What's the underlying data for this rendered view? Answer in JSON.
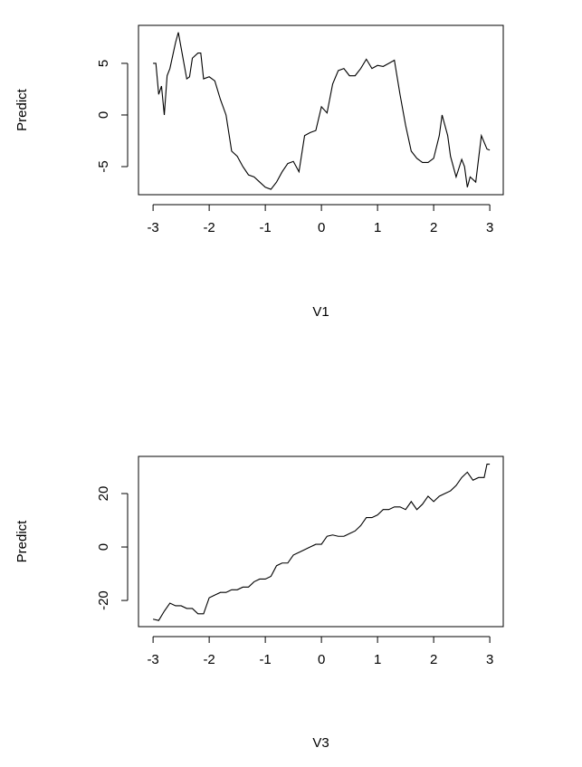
{
  "chart_data": [
    {
      "type": "line",
      "xlabel": "V1",
      "ylabel": "Predict",
      "color": "#000000",
      "x": [
        -3,
        -2.95,
        -2.9,
        -2.85,
        -2.8,
        -2.75,
        -2.7,
        -2.6,
        -2.55,
        -2.5,
        -2.4,
        -2.35,
        -2.3,
        -2.2,
        -2.15,
        -2.1,
        -2.0,
        -1.9,
        -1.8,
        -1.7,
        -1.6,
        -1.5,
        -1.4,
        -1.3,
        -1.2,
        -1.1,
        -1.0,
        -0.9,
        -0.8,
        -0.7,
        -0.6,
        -0.5,
        -0.4,
        -0.3,
        -0.2,
        -0.1,
        0,
        0.1,
        0.2,
        0.3,
        0.4,
        0.5,
        0.6,
        0.7,
        0.8,
        0.9,
        1.0,
        1.1,
        1.2,
        1.3,
        1.4,
        1.5,
        1.6,
        1.7,
        1.8,
        1.9,
        2.0,
        2.1,
        2.15,
        2.25,
        2.3,
        2.4,
        2.5,
        2.55,
        2.6,
        2.65,
        2.75,
        2.85,
        2.95,
        3.0
      ],
      "values": [
        5,
        5,
        2,
        2.8,
        0,
        3.8,
        4.5,
        7,
        8,
        6.5,
        3.5,
        3.7,
        5.5,
        6,
        6,
        3.5,
        3.7,
        3.3,
        1.5,
        0,
        -3.5,
        -4,
        -5,
        -5.8,
        -6,
        -6.5,
        -7,
        -7.2,
        -6.5,
        -5.5,
        -4.7,
        -4.5,
        -5.5,
        -2,
        -1.7,
        -1.5,
        0.8,
        0.2,
        3,
        4.3,
        4.5,
        3.8,
        3.8,
        4.5,
        5.4,
        4.5,
        4.8,
        4.7,
        5,
        5.3,
        2,
        -1,
        -3.5,
        -4.2,
        -4.6,
        -4.6,
        -4.2,
        -2,
        0,
        -2,
        -4,
        -6,
        -4.3,
        -5,
        -7,
        -6,
        -6.5,
        -2,
        -3.3,
        -3.4
      ],
      "xlim": [
        -3.26,
        3.24
      ],
      "ylim": [
        -7.72,
        8.68
      ],
      "xticks": [
        -3,
        -2,
        -1,
        0,
        1,
        2,
        3
      ],
      "yticks": [
        -5,
        0,
        5
      ]
    },
    {
      "type": "line",
      "xlabel": "V3",
      "ylabel": "Predict",
      "color": "#000000",
      "x": [
        -3,
        -2.9,
        -2.8,
        -2.7,
        -2.6,
        -2.5,
        -2.4,
        -2.3,
        -2.2,
        -2.1,
        -2.0,
        -1.9,
        -1.8,
        -1.7,
        -1.6,
        -1.5,
        -1.4,
        -1.3,
        -1.2,
        -1.1,
        -1.0,
        -0.9,
        -0.8,
        -0.7,
        -0.6,
        -0.5,
        -0.4,
        -0.3,
        -0.2,
        -0.1,
        0,
        0.1,
        0.2,
        0.3,
        0.4,
        0.5,
        0.6,
        0.7,
        0.8,
        0.9,
        1.0,
        1.1,
        1.2,
        1.3,
        1.4,
        1.5,
        1.6,
        1.7,
        1.8,
        1.9,
        2.0,
        2.1,
        2.2,
        2.3,
        2.4,
        2.5,
        2.6,
        2.7,
        2.8,
        2.9,
        2.95,
        3.0
      ],
      "values": [
        -27,
        -27.5,
        -24,
        -21,
        -22,
        -22,
        -23,
        -23,
        -25,
        -25,
        -19,
        -18,
        -17,
        -17,
        -16,
        -16,
        -15,
        -15,
        -13,
        -12,
        -12,
        -11,
        -7,
        -6,
        -6,
        -3,
        -2,
        -1,
        0,
        1,
        1,
        4,
        4.5,
        4,
        4,
        5,
        6,
        8,
        11,
        11,
        12,
        14,
        14,
        15,
        15,
        14,
        17,
        14,
        16,
        19,
        17,
        19,
        20,
        21,
        23,
        26,
        28,
        25,
        26,
        26,
        31,
        31
      ],
      "xlim": [
        -3.26,
        3.24
      ],
      "ylim": [
        -29.8,
        33.9
      ],
      "xticks": [
        -3,
        -2,
        -1,
        0,
        1,
        2,
        3
      ],
      "yticks": [
        -20,
        0,
        20
      ]
    }
  ]
}
